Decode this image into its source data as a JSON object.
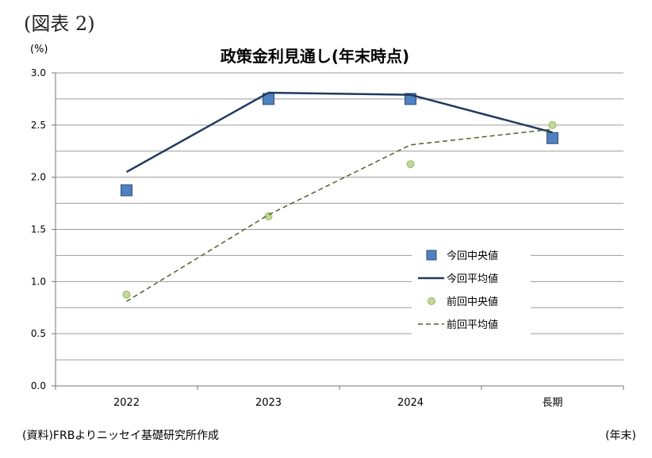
{
  "figure_label": "(図表 2)",
  "source_note": "(資料)FRBよりニッセイ基礎研究所作成",
  "chart_data": {
    "type": "line",
    "title": "政策金利見通し(年末時点)",
    "ylabel": "(%)",
    "xlabel": "(年末)",
    "categories": [
      "2022",
      "2023",
      "2024",
      "長期"
    ],
    "ylim": [
      0,
      3
    ],
    "yticks": [
      "0.0",
      "0.5",
      "1.0",
      "1.5",
      "2.0",
      "2.5",
      "3.0"
    ],
    "grid": true,
    "legend_position": "lower-right",
    "series": [
      {
        "name": "今回中央値",
        "style": "square-marker",
        "color": "#4f81bd",
        "values": [
          1.875,
          2.75,
          2.75,
          2.375
        ]
      },
      {
        "name": "今回平均値",
        "style": "solid-line",
        "color": "#1f3a5f",
        "values": [
          2.05,
          2.81,
          2.79,
          2.43
        ]
      },
      {
        "name": "前回中央値",
        "style": "dot-marker",
        "color": "#c3d69b",
        "values": [
          0.875,
          1.625,
          2.125,
          2.5
        ]
      },
      {
        "name": "前回平均値",
        "style": "dashed-line",
        "color": "#4f6228",
        "values": [
          0.81,
          1.64,
          2.31,
          2.46
        ]
      }
    ]
  }
}
